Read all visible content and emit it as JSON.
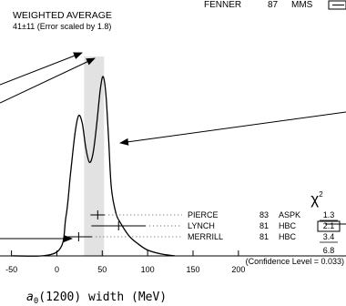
{
  "chart_data": {
    "type": "ideogram",
    "xlabel_base": "a",
    "xlabel_sub": "0",
    "xlabel_rest": "(1200) width (MeV)",
    "xlim": [
      -50,
      200
    ],
    "xticks": [
      -50,
      0,
      50,
      100,
      150,
      200
    ],
    "weighted_average": {
      "title": "WEIGHTED AVERAGE",
      "value_text": "41±11 (Error scaled by 1.8)",
      "value": 41,
      "error": 11
    },
    "chi2_header": "χ",
    "chi2_header_sup": "2",
    "measurements": [
      {
        "name": "FENNER",
        "year": "87",
        "tech": "MMS",
        "value": null,
        "err_low": null,
        "err_high": null,
        "chi2": ""
      },
      {
        "name": "PIERCE",
        "year": "83",
        "tech": "ASPK",
        "value": 45,
        "err_low": 8,
        "err_high": 8,
        "chi2": "1.3",
        "boxed": false
      },
      {
        "name": "LYNCH",
        "year": "81",
        "tech": "HBC",
        "value": 68,
        "err_low": 30,
        "err_high": 30,
        "chi2": "2.1",
        "boxed": true
      },
      {
        "name": "MERRILL",
        "year": "81",
        "tech": "HBC",
        "value": 24,
        "err_low": 15,
        "err_high": 15,
        "chi2": "3.4",
        "boxed": false
      }
    ],
    "chi2_total": "6.8",
    "confidence_level": "(Confidence Level = 0.033)",
    "ideogram_points": [
      [
        -50,
        0
      ],
      [
        0,
        0.02
      ],
      [
        10,
        0.2
      ],
      [
        15,
        0.42
      ],
      [
        20,
        0.63
      ],
      [
        24,
        0.72
      ],
      [
        28,
        0.68
      ],
      [
        32,
        0.55
      ],
      [
        36,
        0.48
      ],
      [
        40,
        0.53
      ],
      [
        44,
        0.68
      ],
      [
        48,
        0.86
      ],
      [
        51,
        0.92
      ],
      [
        54,
        0.83
      ],
      [
        57,
        0.6
      ],
      [
        60,
        0.35
      ],
      [
        65,
        0.22
      ],
      [
        70,
        0.17
      ],
      [
        80,
        0.1
      ],
      [
        90,
        0.06
      ],
      [
        100,
        0.03
      ],
      [
        115,
        0.01
      ],
      [
        130,
        0
      ]
    ]
  }
}
